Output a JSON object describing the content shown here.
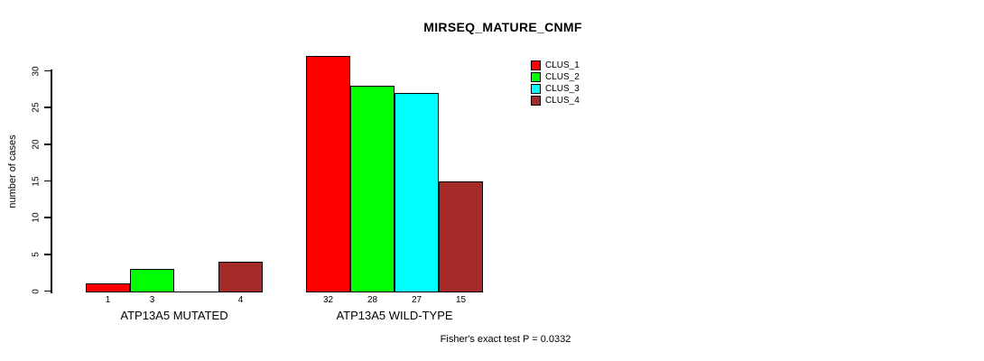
{
  "chart_data": {
    "type": "bar",
    "title": "MIRSEQ_MATURE_CNMF",
    "ylabel": "number of cases",
    "ylim": [
      0,
      32
    ],
    "yticks": [
      0,
      5,
      10,
      15,
      20,
      25,
      30
    ],
    "grid": false,
    "legend_position": "top-right",
    "categories": [
      "ATP13A5 MUTATED",
      "ATP13A5 WILD-TYPE"
    ],
    "series": [
      {
        "name": "CLUS_1",
        "color": "#FF0000",
        "values": [
          1,
          32
        ]
      },
      {
        "name": "CLUS_2",
        "color": "#00FF00",
        "values": [
          3,
          28
        ]
      },
      {
        "name": "CLUS_3",
        "color": "#00FFFF",
        "values": [
          0,
          27
        ]
      },
      {
        "name": "CLUS_4",
        "color": "#A52A2A",
        "values": [
          4,
          15
        ]
      }
    ],
    "bar_value_labels": [
      [
        "1",
        "3",
        "",
        "4"
      ],
      [
        "32",
        "28",
        "27",
        "15"
      ]
    ],
    "annotation": "Fisher's exact test P = 0.0332"
  },
  "colors": {
    "axis": "#000000",
    "background": "#FFFFFF"
  }
}
